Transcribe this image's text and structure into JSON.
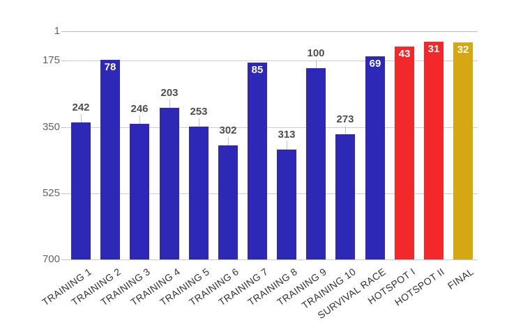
{
  "chart_data": {
    "type": "bar",
    "title": "",
    "xlabel": "",
    "ylabel": "",
    "legend": "none",
    "grid": true,
    "categories": [
      "TRAINING 1",
      "TRAINING 2",
      "TRAINING 3",
      "TRAINING 4",
      "TRAINING 5",
      "TRAINING 6",
      "TRAINING 7",
      "TRAINING 8",
      "TRAINING 9",
      "TRAINING 10",
      "SURVIVAL RACE",
      "HOTSPOT I",
      "HOTSPOT II",
      "FINAL"
    ],
    "values": [
      242,
      78,
      246,
      203,
      253,
      302,
      85,
      313,
      100,
      273,
      69,
      43,
      31,
      32
    ],
    "bar_colors": [
      "#2d28b5",
      "#2d28b5",
      "#2d28b5",
      "#2d28b5",
      "#2d28b5",
      "#2d28b5",
      "#2d28b5",
      "#2d28b5",
      "#2d28b5",
      "#2d28b5",
      "#2d28b5",
      "#f3282a",
      "#f3282a",
      "#d4a713"
    ],
    "value_label_inside": [
      false,
      true,
      false,
      false,
      false,
      false,
      true,
      false,
      false,
      false,
      true,
      true,
      true,
      true
    ],
    "y_axis": {
      "direction": "inverted",
      "tick_labels": [
        "1",
        "175",
        "350",
        "525",
        "700"
      ]
    }
  },
  "style": {
    "background": "#ffffff",
    "bar_blue": "#2d28b5",
    "bar_red": "#f3282a",
    "bar_gold": "#d4a713",
    "grid_color": "#cccccc",
    "top_grid_color": "#b9b9b9",
    "value_label_color": "#4d4d4d",
    "value_label_inside_color": "#ffffff",
    "y_tick_color": "#616161",
    "x_label_color": "#333333",
    "leader_color": "#c2c2c2"
  }
}
